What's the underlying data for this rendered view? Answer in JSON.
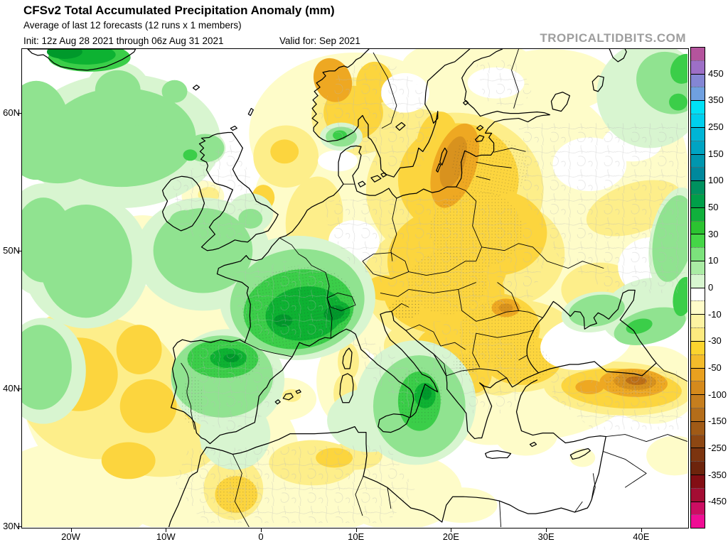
{
  "header": {
    "title": "CFSv2 Total Accumulated Precipitation Anomaly (mm)",
    "subtitle": "Average of last 12 forecasts (12 runs x 1 members)",
    "init_line": "Init: 12z Aug 28 2021 through 06z Aug 31 2021",
    "valid_line": "Valid for: Sep 2021",
    "watermark": "TROPICALTIDBITS.COM"
  },
  "axes": {
    "lat_ticks": [
      {
        "value": 60,
        "label": "60N"
      },
      {
        "value": 50,
        "label": "50N"
      },
      {
        "value": 40,
        "label": "40N"
      },
      {
        "value": 30,
        "label": "30N"
      }
    ],
    "lon_ticks": [
      {
        "value": -20,
        "label": "20W"
      },
      {
        "value": -10,
        "label": "10W"
      },
      {
        "value": 0,
        "label": "0"
      },
      {
        "value": 10,
        "label": "10E"
      },
      {
        "value": 20,
        "label": "20E"
      },
      {
        "value": 30,
        "label": "30E"
      },
      {
        "value": 40,
        "label": "40E"
      }
    ],
    "lon_range": [
      -25.2,
      44.8
    ],
    "lat_range": [
      30,
      64.7
    ]
  },
  "colorbar": {
    "units": "mm",
    "labels": [
      "450",
      "350",
      "250",
      "150",
      "100",
      "50",
      "30",
      "10",
      "0",
      "-10",
      "-30",
      "-50",
      "-100",
      "-150",
      "-250",
      "-350",
      "-450"
    ],
    "cell_colors": [
      "#b4549d",
      "#9d6fc6",
      "#8486d4",
      "#6fa0e0",
      "#00e1f6",
      "#00cfee",
      "#00b5d6",
      "#00a4c2",
      "#0096ae",
      "#00889c",
      "#00915f",
      "#009f49",
      "#10b03c",
      "#2cc331",
      "#45d647",
      "#7ce27c",
      "#aaeca4",
      "#d8f6d0",
      "#ffffff",
      "#fffcc9",
      "#fdf3a2",
      "#fdea7f",
      "#fcd42e",
      "#f4bc2b",
      "#e8a01f",
      "#d58a1c",
      "#c67e1e",
      "#b46d1a",
      "#a05a16",
      "#8d4713",
      "#7c340f",
      "#6d240c",
      "#830e14",
      "#a30d33",
      "#cc0e62",
      "#f00d94"
    ]
  },
  "palette": {
    "y1": "#fefcc9",
    "y2": "#fdee8a",
    "y3": "#fcd53e",
    "y4": "#eea822",
    "y5": "#d8921e",
    "y6": "#bd6f16",
    "g1": "#d8f5d0",
    "g2": "#90e390",
    "g3": "#3bce49",
    "g4": "#0db232",
    "g5": "#00992b",
    "white": "#ffffff",
    "coast": "#000000",
    "admin": "#bbbbbb"
  }
}
